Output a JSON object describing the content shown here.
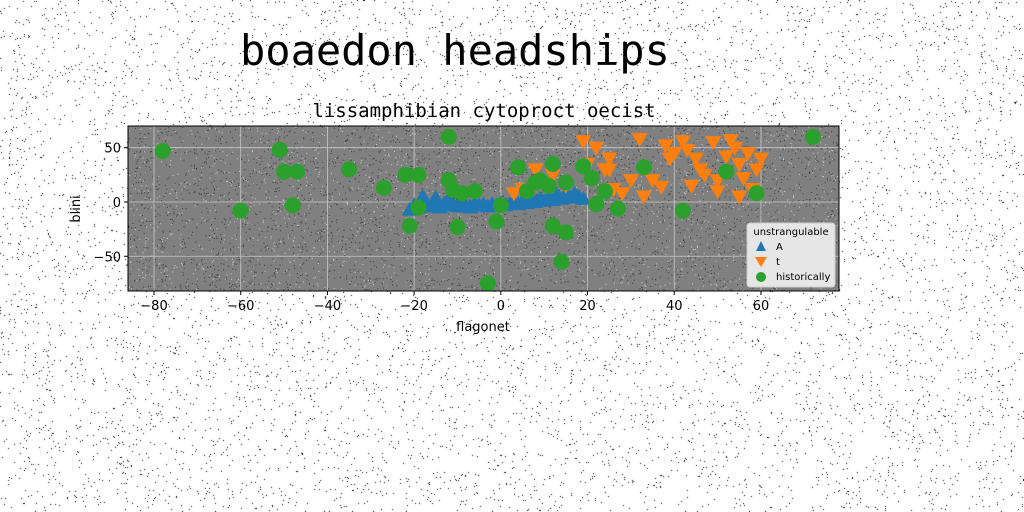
{
  "figure_title": "boaedon headships",
  "colors": {
    "background": "#ffffff",
    "plot_bg": "#808080",
    "grid": "#c8c8c8",
    "A": "#1f77b4",
    "t": "#ff7f0e",
    "historically": "#2ca02c"
  },
  "chart_data": {
    "type": "scatter",
    "title": "lissamphibian cytoproct oecist",
    "xlabel": "flagonet",
    "ylabel": "blini",
    "xlim": [
      -86,
      78
    ],
    "ylim": [
      -82,
      70
    ],
    "xticks": [
      -80,
      -60,
      -40,
      -20,
      0,
      20,
      40,
      60
    ],
    "yticks": [
      -50,
      0,
      50
    ],
    "grid": true,
    "legend": {
      "title": "unstrangulable",
      "placement": "lower-right"
    },
    "series": [
      {
        "name": "A",
        "marker": "triangle-up",
        "points": [
          [
            -21,
            -7
          ],
          [
            -20,
            -3
          ],
          [
            -19,
            -5
          ],
          [
            -18,
            -1
          ],
          [
            -17,
            -4
          ],
          [
            -16,
            -2
          ],
          [
            -15,
            -3
          ],
          [
            -14,
            -5
          ],
          [
            -13,
            -1
          ],
          [
            -12,
            -3
          ],
          [
            -11,
            -2
          ],
          [
            -10,
            -4
          ],
          [
            -9,
            -2
          ],
          [
            -8,
            -3
          ],
          [
            -7,
            -5
          ],
          [
            -6,
            -1
          ],
          [
            -5,
            -3
          ],
          [
            -4,
            -2
          ],
          [
            -3,
            -4
          ],
          [
            -2,
            -2
          ],
          [
            -1,
            -3
          ],
          [
            0,
            -1
          ],
          [
            1,
            -3
          ],
          [
            2,
            -2
          ],
          [
            3,
            0
          ],
          [
            4,
            -2
          ],
          [
            5,
            1
          ],
          [
            6,
            -1
          ],
          [
            7,
            2
          ],
          [
            8,
            0
          ],
          [
            9,
            3
          ],
          [
            10,
            1
          ],
          [
            11,
            4
          ],
          [
            12,
            2
          ],
          [
            13,
            6
          ],
          [
            14,
            3
          ],
          [
            15,
            7
          ],
          [
            16,
            4
          ],
          [
            17,
            8
          ],
          [
            18,
            5
          ],
          [
            19,
            3
          ],
          [
            -18,
            5
          ],
          [
            -15,
            4
          ],
          [
            -12,
            3
          ]
        ]
      },
      {
        "name": "t",
        "marker": "triangle-down",
        "points": [
          [
            19,
            56
          ],
          [
            22,
            50
          ],
          [
            25,
            40
          ],
          [
            24,
            30
          ],
          [
            26,
            12
          ],
          [
            28,
            8
          ],
          [
            30,
            20
          ],
          [
            32,
            58
          ],
          [
            35,
            20
          ],
          [
            37,
            14
          ],
          [
            38,
            52
          ],
          [
            39,
            40
          ],
          [
            40,
            45
          ],
          [
            42,
            56
          ],
          [
            43,
            48
          ],
          [
            44,
            15
          ],
          [
            46,
            30
          ],
          [
            47,
            25
          ],
          [
            49,
            55
          ],
          [
            50,
            20
          ],
          [
            52,
            42
          ],
          [
            53,
            57
          ],
          [
            54,
            50
          ],
          [
            55,
            35
          ],
          [
            56,
            22
          ],
          [
            57,
            45
          ],
          [
            58,
            12
          ],
          [
            59,
            30
          ],
          [
            60,
            40
          ],
          [
            55,
            5
          ],
          [
            5,
            12
          ],
          [
            8,
            30
          ],
          [
            12,
            25
          ],
          [
            15,
            15
          ],
          [
            20,
            35
          ],
          [
            3,
            8
          ],
          [
            45,
            40
          ],
          [
            50,
            10
          ],
          [
            25,
            30
          ],
          [
            33,
            5
          ]
        ]
      },
      {
        "name": "historically",
        "marker": "circle",
        "points": [
          [
            -78,
            47
          ],
          [
            -60,
            -8
          ],
          [
            -51,
            48
          ],
          [
            -50,
            28
          ],
          [
            -48,
            -3
          ],
          [
            -47,
            28
          ],
          [
            -35,
            30
          ],
          [
            -27,
            13
          ],
          [
            -22,
            25
          ],
          [
            -21,
            -22
          ],
          [
            -19,
            25
          ],
          [
            -19,
            -5
          ],
          [
            -12,
            60
          ],
          [
            -12,
            20
          ],
          [
            -11,
            11
          ],
          [
            -10,
            -23
          ],
          [
            -9,
            8
          ],
          [
            -6,
            10
          ],
          [
            -3,
            -75
          ],
          [
            -1,
            -18
          ],
          [
            0,
            -3
          ],
          [
            4,
            32
          ],
          [
            6,
            10
          ],
          [
            9,
            20
          ],
          [
            11,
            15
          ],
          [
            12,
            35
          ],
          [
            12,
            -22
          ],
          [
            14,
            -55
          ],
          [
            15,
            -28
          ],
          [
            19,
            33
          ],
          [
            21,
            22
          ],
          [
            22,
            -2
          ],
          [
            24,
            10
          ],
          [
            27,
            -6
          ],
          [
            33,
            32
          ],
          [
            42,
            -8
          ],
          [
            52,
            28
          ],
          [
            59,
            8
          ],
          [
            72,
            60
          ],
          [
            15,
            18
          ],
          [
            8,
            18
          ]
        ]
      }
    ]
  }
}
